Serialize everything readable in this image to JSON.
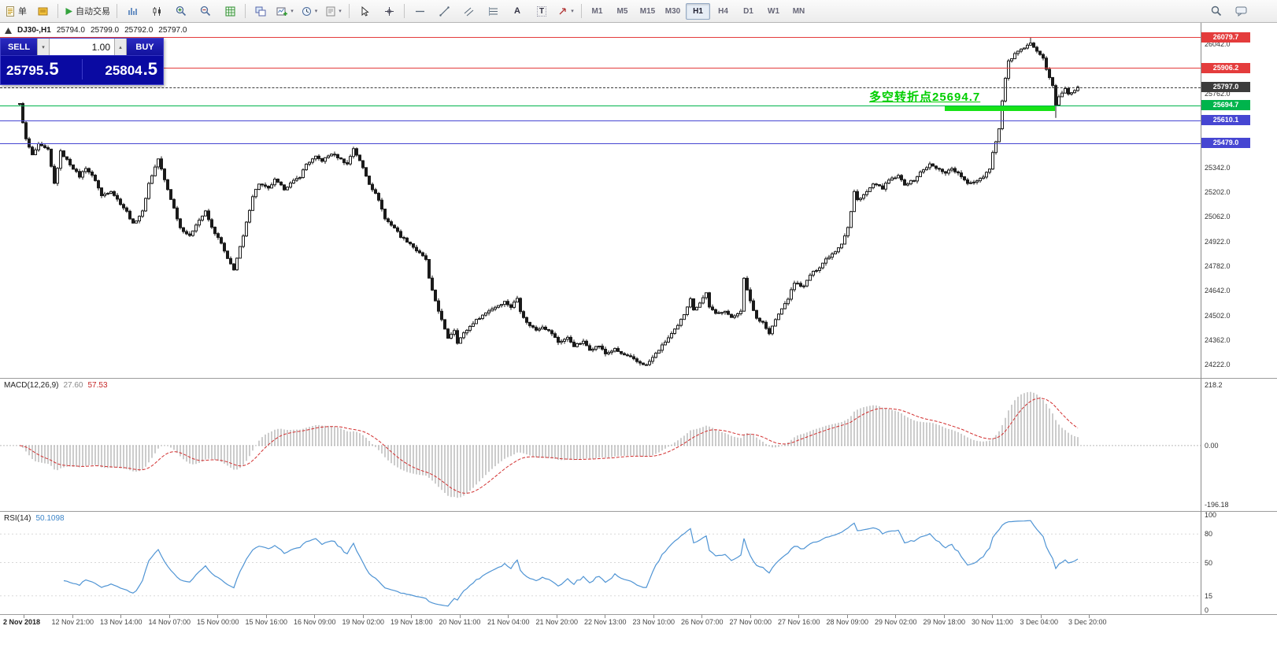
{
  "toolbar": {
    "new_order_label": "单",
    "autotrading_label": "自动交易",
    "timeframes": [
      "M1",
      "M5",
      "M15",
      "M30",
      "H1",
      "H4",
      "D1",
      "W1",
      "MN"
    ],
    "active_timeframe": "H1"
  },
  "chart": {
    "symbol_header": {
      "symbol": "DJ30-,H1",
      "open": "25794.0",
      "high": "25799.0",
      "low": "25792.0",
      "close": "25797.0"
    },
    "trade_panel": {
      "sell_label": "SELL",
      "buy_label": "BUY",
      "lot_value": "1.00",
      "sell_price_main": "25795",
      "sell_price_pips": ".5",
      "buy_price_main": "25804",
      "buy_price_pips": ".5"
    },
    "annotation": {
      "text": "多空转折点25694.7",
      "color": "#00ce00",
      "highlight_color": "#17e217"
    },
    "levels": [
      {
        "price": 26079.7,
        "label": "26079.7",
        "color": "#e43c3c",
        "style": "solid"
      },
      {
        "price": 25906.2,
        "label": "25906.2",
        "color": "#e43c3c",
        "style": "solid"
      },
      {
        "price": 25797.0,
        "label": "25797.0",
        "color": "#3c3c3c",
        "style": "dashed",
        "role": "current-price"
      },
      {
        "price": 25694.7,
        "label": "25694.7",
        "color": "#00b44c",
        "style": "solid"
      },
      {
        "price": 25610.1,
        "label": "25610.1",
        "color": "#4646d2",
        "style": "solid"
      },
      {
        "price": 25479.0,
        "label": "25479.0",
        "color": "#4646d2",
        "style": "solid"
      }
    ],
    "price_ticks": [
      26042.0,
      25902.0,
      25762.0,
      25622.0,
      25482.0,
      25342.0,
      25202.0,
      25062.0,
      24922.0,
      24782.0,
      24642.0,
      24502.0,
      24362.0,
      24222.0
    ]
  },
  "macd": {
    "label": "MACD(12,26,9)",
    "value_main": "27.60",
    "value_signal": "57.53",
    "axis_top": "218.2",
    "axis_zero": "0.00",
    "axis_bottom": "-196.18",
    "histogram_color": "#ababab",
    "signal_color": "#d22f2f"
  },
  "rsi": {
    "label": "RSI(14)",
    "value": "50.1098",
    "axis": [
      "100",
      "80",
      "50",
      "15",
      "0"
    ],
    "line_color": "#4f94d4"
  },
  "time_axis": [
    "2 Nov 2018",
    "12 Nov 21:00",
    "13 Nov 14:00",
    "14 Nov 07:00",
    "15 Nov 00:00",
    "15 Nov 16:00",
    "16 Nov 09:00",
    "19 Nov 02:00",
    "19 Nov 18:00",
    "20 Nov 11:00",
    "21 Nov 04:00",
    "21 Nov 20:00",
    "22 Nov 13:00",
    "23 Nov 10:00",
    "26 Nov 07:00",
    "27 Nov 00:00",
    "27 Nov 16:00",
    "28 Nov 09:00",
    "29 Nov 02:00",
    "29 Nov 18:00",
    "30 Nov 11:00",
    "3 Dec 04:00",
    "3 Dec 20:00"
  ],
  "chart_data": {
    "type": "candlestick",
    "symbol": "DJ30-",
    "timeframe": "H1",
    "bars": 337,
    "visible_price_range": [
      24170,
      26090
    ],
    "ohlc_current": {
      "open": 25794.0,
      "high": 25799.0,
      "low": 25792.0,
      "close": 25797.0
    },
    "pinned": {
      "high_bar": 321,
      "high": 26079.7,
      "low_bar": 199,
      "low": 24220.0,
      "pullback_low_bar": 329,
      "pullback_low": 25622.0,
      "last_close": 25797.0
    },
    "price_path": [
      [
        0,
        25700
      ],
      [
        2,
        25500
      ],
      [
        4,
        25410
      ],
      [
        6,
        25470
      ],
      [
        9,
        25440
      ],
      [
        11,
        25250
      ],
      [
        13,
        25430
      ],
      [
        16,
        25360
      ],
      [
        19,
        25290
      ],
      [
        21,
        25340
      ],
      [
        24,
        25270
      ],
      [
        26,
        25180
      ],
      [
        29,
        25210
      ],
      [
        31,
        25160
      ],
      [
        34,
        25090
      ],
      [
        36,
        25020
      ],
      [
        39,
        25090
      ],
      [
        41,
        25250
      ],
      [
        44,
        25390
      ],
      [
        46,
        25270
      ],
      [
        49,
        25110
      ],
      [
        51,
        25000
      ],
      [
        54,
        24950
      ],
      [
        56,
        25020
      ],
      [
        59,
        25090
      ],
      [
        61,
        25000
      ],
      [
        64,
        24910
      ],
      [
        66,
        24820
      ],
      [
        68,
        24765
      ],
      [
        71,
        24950
      ],
      [
        74,
        25180
      ],
      [
        76,
        25250
      ],
      [
        79,
        25220
      ],
      [
        81,
        25270
      ],
      [
        84,
        25220
      ],
      [
        86,
        25250
      ],
      [
        89,
        25290
      ],
      [
        91,
        25360
      ],
      [
        94,
        25400
      ],
      [
        96,
        25380
      ],
      [
        99,
        25420
      ],
      [
        101,
        25400
      ],
      [
        104,
        25360
      ],
      [
        106,
        25450
      ],
      [
        109,
        25340
      ],
      [
        111,
        25250
      ],
      [
        114,
        25160
      ],
      [
        116,
        25050
      ],
      [
        119,
        25000
      ],
      [
        121,
        24950
      ],
      [
        124,
        24910
      ],
      [
        126,
        24870
      ],
      [
        129,
        24820
      ],
      [
        130,
        24710
      ],
      [
        131,
        24640
      ],
      [
        133,
        24530
      ],
      [
        135,
        24420
      ],
      [
        136,
        24375
      ],
      [
        138,
        24420
      ],
      [
        139,
        24350
      ],
      [
        141,
        24400
      ],
      [
        144,
        24460
      ],
      [
        146,
        24490
      ],
      [
        149,
        24530
      ],
      [
        151,
        24550
      ],
      [
        154,
        24580
      ],
      [
        156,
        24550
      ],
      [
        158,
        24600
      ],
      [
        159,
        24530
      ],
      [
        161,
        24460
      ],
      [
        164,
        24420
      ],
      [
        166,
        24440
      ],
      [
        169,
        24400
      ],
      [
        171,
        24350
      ],
      [
        174,
        24375
      ],
      [
        176,
        24330
      ],
      [
        179,
        24352
      ],
      [
        181,
        24310
      ],
      [
        184,
        24330
      ],
      [
        186,
        24285
      ],
      [
        189,
        24310
      ],
      [
        191,
        24285
      ],
      [
        194,
        24263
      ],
      [
        196,
        24240
      ],
      [
        199,
        24220
      ],
      [
        201,
        24263
      ],
      [
        204,
        24330
      ],
      [
        206,
        24375
      ],
      [
        209,
        24442
      ],
      [
        211,
        24510
      ],
      [
        213,
        24600
      ],
      [
        214,
        24530
      ],
      [
        216,
        24576
      ],
      [
        218,
        24630
      ],
      [
        219,
        24553
      ],
      [
        221,
        24509
      ],
      [
        224,
        24531
      ],
      [
        226,
        24486
      ],
      [
        229,
        24531
      ],
      [
        230,
        24710
      ],
      [
        231,
        24643
      ],
      [
        233,
        24531
      ],
      [
        234,
        24486
      ],
      [
        236,
        24464
      ],
      [
        238,
        24397
      ],
      [
        239,
        24442
      ],
      [
        241,
        24509
      ],
      [
        244,
        24598
      ],
      [
        246,
        24688
      ],
      [
        249,
        24665
      ],
      [
        251,
        24732
      ],
      [
        254,
        24777
      ],
      [
        256,
        24822
      ],
      [
        259,
        24867
      ],
      [
        261,
        24911
      ],
      [
        263,
        25001
      ],
      [
        264,
        25090
      ],
      [
        265,
        25202
      ],
      [
        266,
        25157
      ],
      [
        269,
        25202
      ],
      [
        271,
        25246
      ],
      [
        274,
        25224
      ],
      [
        276,
        25269
      ],
      [
        279,
        25291
      ],
      [
        281,
        25246
      ],
      [
        284,
        25269
      ],
      [
        286,
        25313
      ],
      [
        289,
        25358
      ],
      [
        291,
        25336
      ],
      [
        294,
        25313
      ],
      [
        296,
        25336
      ],
      [
        299,
        25291
      ],
      [
        301,
        25246
      ],
      [
        304,
        25269
      ],
      [
        306,
        25291
      ],
      [
        308,
        25336
      ],
      [
        309,
        25425
      ],
      [
        310,
        25492
      ],
      [
        311,
        25560
      ],
      [
        312,
        25716
      ],
      [
        313,
        25850
      ],
      [
        314,
        25940
      ],
      [
        315,
        25962
      ],
      [
        316,
        25984
      ],
      [
        318,
        26007
      ],
      [
        320,
        26029
      ],
      [
        321,
        26051
      ],
      [
        322,
        26029
      ],
      [
        324,
        25984
      ],
      [
        325,
        25962
      ],
      [
        326,
        25895
      ],
      [
        328,
        25805
      ],
      [
        329,
        25700
      ],
      [
        330,
        25738
      ],
      [
        332,
        25783
      ],
      [
        333,
        25761
      ],
      [
        335,
        25774
      ],
      [
        336,
        25797
      ]
    ],
    "indicators": [
      {
        "type": "MACD",
        "params": [
          12,
          26,
          9
        ],
        "current": [
          27.6,
          57.53
        ],
        "axis_range": [
          -196.18,
          218.2
        ]
      },
      {
        "type": "RSI",
        "params": [
          14
        ],
        "current": 50.1098,
        "range": [
          0,
          100
        ]
      }
    ]
  }
}
